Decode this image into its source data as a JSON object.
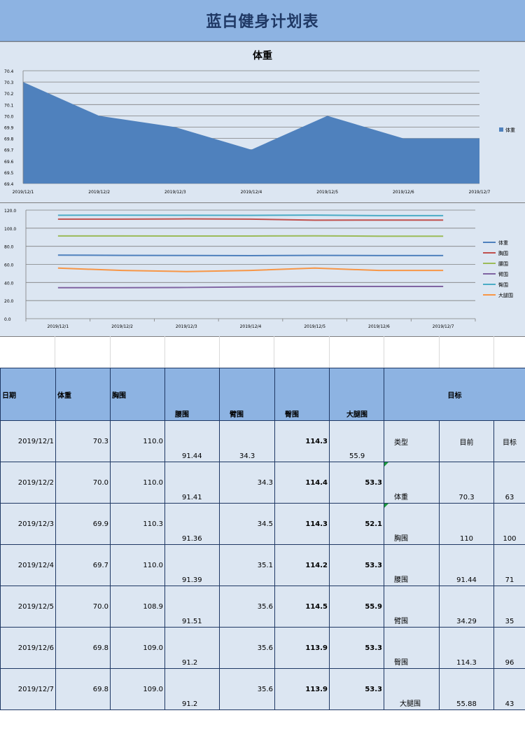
{
  "page_title": "蓝白健身计划表",
  "chart_data": [
    {
      "type": "area",
      "title": "体重",
      "categories": [
        "2019/12/1",
        "2019/12/2",
        "2019/12/3",
        "2019/12/4",
        "2019/12/5",
        "2019/12/6",
        "2019/12/7"
      ],
      "series": [
        {
          "name": "体重",
          "values": [
            70.3,
            70.0,
            69.9,
            69.7,
            70.0,
            69.8,
            69.8
          ],
          "color": "#4f81bd"
        }
      ],
      "ylim": [
        69.4,
        70.4
      ],
      "yticks": [
        "70.4",
        "70.3",
        "70.2",
        "70.1",
        "70.0",
        "69.9",
        "69.8",
        "69.7",
        "69.6",
        "69.5",
        "69.4"
      ],
      "legend": "right",
      "grid": true
    },
    {
      "type": "line",
      "categories": [
        "2019/12/1",
        "2019/12/2",
        "2019/12/3",
        "2019/12/4",
        "2019/12/5",
        "2019/12/6",
        "2019/12/7"
      ],
      "series": [
        {
          "name": "体重",
          "values": [
            70.3,
            70.0,
            69.9,
            69.7,
            70.0,
            69.8,
            69.8
          ],
          "color": "#4f81bd"
        },
        {
          "name": "胸围",
          "values": [
            110.0,
            110.0,
            110.3,
            110.0,
            108.9,
            109.0,
            109.0
          ],
          "color": "#c0504d"
        },
        {
          "name": "腰围",
          "values": [
            91.44,
            91.41,
            91.36,
            91.39,
            91.51,
            91.2,
            91.2
          ],
          "color": "#9bbb59"
        },
        {
          "name": "臂围",
          "values": [
            34.3,
            34.3,
            34.5,
            35.1,
            35.6,
            35.6,
            35.6
          ],
          "color": "#8064a2"
        },
        {
          "name": "臀围",
          "values": [
            114.3,
            114.4,
            114.3,
            114.2,
            114.5,
            113.9,
            113.9
          ],
          "color": "#4bacc6"
        },
        {
          "name": "大腿围",
          "values": [
            55.9,
            53.3,
            52.1,
            53.3,
            55.9,
            53.3,
            53.3
          ],
          "color": "#f79646"
        }
      ],
      "ylim": [
        0,
        120
      ],
      "yticks": [
        "120.0",
        "100.0",
        "80.0",
        "60.0",
        "40.0",
        "20.0",
        "0.0"
      ],
      "legend": "right",
      "grid": true
    }
  ],
  "table": {
    "headers": {
      "date": "日期",
      "weight": "体重",
      "chest": "胸围",
      "waist": "腰围",
      "arm": "臂围",
      "hip": "臀围",
      "thigh": "大腿围",
      "goal": "目标"
    },
    "rows": [
      {
        "date": "2019/12/1",
        "weight": "70.3",
        "chest": "110.0",
        "waist": "91.44",
        "arm": "34.3",
        "hip": "114.3",
        "thigh": "55.9"
      },
      {
        "date": "2019/12/2",
        "weight": "70.0",
        "chest": "110.0",
        "waist": "91.41",
        "arm": "34.3",
        "hip": "114.4",
        "thigh": "53.3"
      },
      {
        "date": "2019/12/3",
        "weight": "69.9",
        "chest": "110.3",
        "waist": "91.36",
        "arm": "34.5",
        "hip": "114.3",
        "thigh": "52.1"
      },
      {
        "date": "2019/12/4",
        "weight": "69.7",
        "chest": "110.0",
        "waist": "91.39",
        "arm": "35.1",
        "hip": "114.2",
        "thigh": "53.3"
      },
      {
        "date": "2019/12/5",
        "weight": "70.0",
        "chest": "108.9",
        "waist": "91.51",
        "arm": "35.6",
        "hip": "114.5",
        "thigh": "55.9"
      },
      {
        "date": "2019/12/6",
        "weight": "69.8",
        "chest": "109.0",
        "waist": "91.2",
        "arm": "35.6",
        "hip": "113.9",
        "thigh": "53.3"
      },
      {
        "date": "2019/12/7",
        "weight": "69.8",
        "chest": "109.0",
        "waist": "91.2",
        "arm": "35.6",
        "hip": "113.9",
        "thigh": "53.3"
      }
    ],
    "goal": {
      "headers": {
        "type": "类型",
        "before": "目前",
        "target": "目标"
      },
      "rows": [
        {
          "type": "体重",
          "before": "70.3",
          "target": "63"
        },
        {
          "type": "胸围",
          "before": "110",
          "target": "100"
        },
        {
          "type": "腰围",
          "before": "91.44",
          "target": "71"
        },
        {
          "type": "臂围",
          "before": "34.29",
          "target": "35"
        },
        {
          "type": "臀围",
          "before": "114.3",
          "target": "96"
        },
        {
          "type": "大腿围",
          "before": "55.88",
          "target": "43"
        }
      ]
    }
  }
}
